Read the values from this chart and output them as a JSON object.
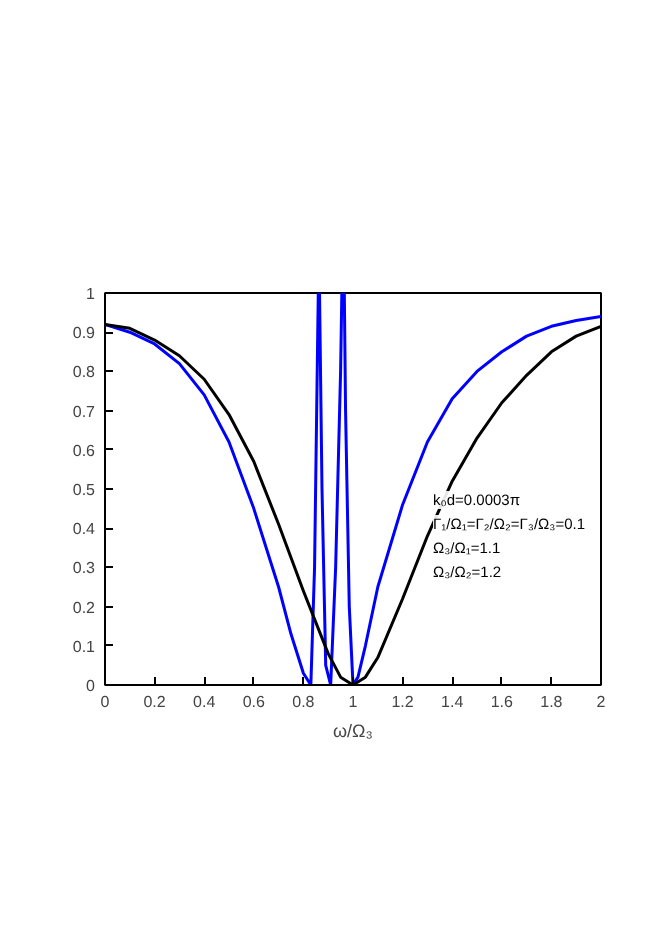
{
  "chart_data": {
    "type": "line",
    "xlabel": "ω/Ω₃",
    "annotations": [
      "k₀d=0.0003π",
      "Γ₁/Ω₁=Γ₂/Ω₂=Γ₃/Ω₃=0.1",
      "Ω₃/Ω₁=1.1",
      "Ω₃/Ω₂=1.2"
    ],
    "xlim": [
      0,
      2
    ],
    "ylim": [
      0,
      1
    ],
    "xticks": [
      0,
      0.2,
      0.4,
      0.6,
      0.8,
      1,
      1.2,
      1.4,
      1.6,
      1.8,
      2
    ],
    "yticks": [
      0,
      0.1,
      0.2,
      0.3,
      0.4,
      0.5,
      0.6,
      0.7,
      0.8,
      0.9,
      1
    ],
    "grid": false,
    "line_style": "solid",
    "series": [
      {
        "color": "#0000ff",
        "x": [
          0,
          0.1,
          0.2,
          0.3,
          0.4,
          0.5,
          0.6,
          0.7,
          0.75,
          0.8,
          0.83,
          0.845,
          0.86,
          0.865,
          0.875,
          0.89,
          0.91,
          0.93,
          0.95,
          0.955,
          0.965,
          0.97,
          0.985,
          1.0,
          1.02,
          1.05,
          1.1,
          1.2,
          1.3,
          1.4,
          1.5,
          1.6,
          1.7,
          1.8,
          1.9,
          2.0
        ],
        "values": [
          0.92,
          0.9,
          0.87,
          0.82,
          0.74,
          0.62,
          0.45,
          0.25,
          0.13,
          0.03,
          0,
          0.3,
          1,
          1,
          0.5,
          0.05,
          0,
          0.3,
          0.8,
          1,
          1,
          0.7,
          0.2,
          0,
          0.02,
          0.1,
          0.25,
          0.46,
          0.62,
          0.73,
          0.8,
          0.85,
          0.89,
          0.915,
          0.93,
          0.94
        ]
      },
      {
        "color": "#000000",
        "x": [
          0,
          0.1,
          0.2,
          0.3,
          0.4,
          0.5,
          0.6,
          0.7,
          0.8,
          0.9,
          0.95,
          1.0,
          1.05,
          1.1,
          1.2,
          1.3,
          1.4,
          1.5,
          1.6,
          1.7,
          1.8,
          1.9,
          2.0
        ],
        "values": [
          0.92,
          0.91,
          0.88,
          0.84,
          0.78,
          0.69,
          0.57,
          0.41,
          0.24,
          0.08,
          0.02,
          0,
          0.02,
          0.07,
          0.22,
          0.38,
          0.52,
          0.63,
          0.72,
          0.79,
          0.85,
          0.89,
          0.915
        ]
      }
    ]
  }
}
